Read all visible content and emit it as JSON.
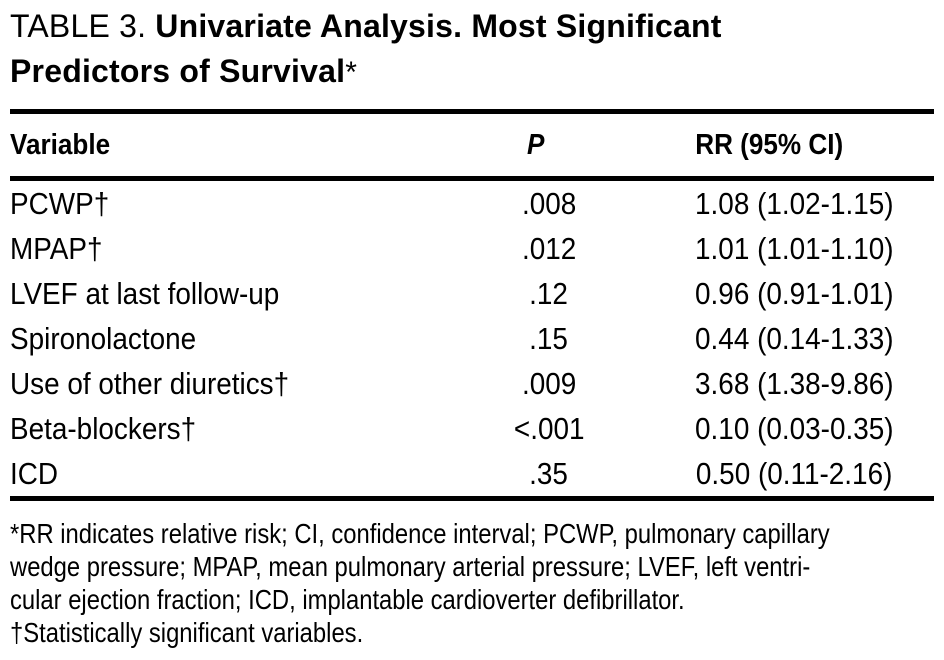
{
  "title": {
    "prefix": "TABLE 3. ",
    "line1_bold": "Univariate Analysis. Most Significant",
    "line2_bold": "Predictors of Survival",
    "footnote_marker": "*"
  },
  "table": {
    "headers": {
      "variable": "Variable",
      "p": "P",
      "rr": "RR (95% CI)"
    },
    "rows": [
      {
        "variable": "PCWP†",
        "p": ".008",
        "rr": "1.08 (1.02-1.15)"
      },
      {
        "variable": "MPAP†",
        "p": ".012",
        "rr": "1.01 (1.01-1.10)"
      },
      {
        "variable": "LVEF at last follow-up",
        "p": ".12",
        "rr": "0.96 (0.91-1.01)"
      },
      {
        "variable": "Spironolactone",
        "p": ".15",
        "rr": "0.44 (0.14-1.33)"
      },
      {
        "variable": "Use of other diuretics†",
        "p": ".009",
        "rr": "3.68 (1.38-9.86)"
      },
      {
        "variable": "Beta-blockers†",
        "p": "<.001",
        "rr": "0.10 (0.03-0.35)"
      },
      {
        "variable": "ICD",
        "p": ".35",
        "rr": "0.50 (0.11-2.16)"
      }
    ]
  },
  "footnote": {
    "lines": [
      "*RR indicates relative risk; CI, confidence interval; PCWP, pulmonary capillary",
      "wedge pressure; MPAP, mean pulmonary arterial pressure; LVEF, left ventri-",
      "cular ejection fraction; ICD, implantable cardioverter defibrillator.",
      "†Statistically significant variables."
    ]
  },
  "colors": {
    "background": "#ffffff",
    "text": "#000000",
    "rule": "#000000"
  }
}
